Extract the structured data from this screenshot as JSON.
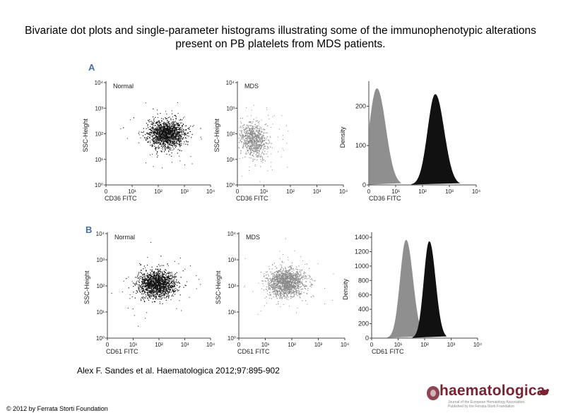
{
  "title": "Bivariate dot plots and single-parameter histograms illustrating some of the immunophenotypic alterations present on PB platelets from MDS patients.",
  "citation": "Alex F. Sandes et al. Haematologica 2012;97:895-902",
  "copyright": "© 2012 by Ferrata Storti Foundation",
  "logo": {
    "name": "haematologica",
    "subtitle": "Journal of the European Hematology Association. Published by the Ferrata Storti Foundation"
  },
  "colors": {
    "normal_dots": "#111111",
    "mds_dots": "#8a8a8a",
    "normal_hist": "#111111",
    "mds_hist": "#8f8f8f",
    "panel_label": "#4a6fa5",
    "logo": "#7a2333"
  },
  "panels": [
    {
      "label": "A",
      "dot_plots": [
        {
          "legend": "Normal",
          "xlabel": "CD36 FITC",
          "ylabel": "SSC-Height",
          "xticks": [
            "0",
            "10¹",
            "10²",
            "10³",
            "10⁴"
          ],
          "yticks": [
            "10⁴",
            "10³",
            "10²",
            "10¹",
            "10⁰"
          ]
        },
        {
          "legend": "MDS",
          "xlabel": "CD36 FITC",
          "ylabel": "SSC-Height",
          "xticks": [
            "0",
            "10¹",
            "10²",
            "10³",
            "10⁴"
          ],
          "yticks": [
            "10⁴",
            "10³",
            "10²",
            "10¹",
            "10⁰"
          ]
        }
      ],
      "histogram": {
        "xlabel": "CD36 FITC",
        "ylabel": "Density",
        "xticks": [
          "0",
          "10¹",
          "10²",
          "10³",
          "10⁴"
        ],
        "yticks": [
          "200",
          "100",
          "0"
        ]
      }
    },
    {
      "label": "B",
      "dot_plots": [
        {
          "legend": "Normal",
          "xlabel": "CD61 FITC",
          "ylabel": "SSC-Height",
          "xticks": [
            "0",
            "10¹",
            "10²",
            "10³",
            "10⁴"
          ],
          "yticks": [
            "10⁴",
            "10³",
            "10²",
            "10¹",
            "10⁰"
          ]
        },
        {
          "legend": "MDS",
          "xlabel": "CD61 FITC",
          "ylabel": "SSC-Height",
          "xticks": [
            "0",
            "10¹",
            "10²",
            "10³",
            "10⁴"
          ],
          "yticks": [
            "10⁴",
            "10³",
            "10²",
            "10¹",
            "10⁰"
          ]
        }
      ],
      "histogram": {
        "xlabel": "CD61 FITC",
        "ylabel": "Density",
        "xticks": [
          "0",
          "10¹",
          "10²",
          "10³",
          "10⁴"
        ],
        "yticks": [
          "1400",
          "1200",
          "1000",
          "800",
          "600",
          "400",
          "200",
          "0"
        ]
      }
    }
  ],
  "chart_data": [
    {
      "type": "scatter",
      "panel": "A",
      "legend": "Normal",
      "xlabel": "CD36 FITC",
      "ylabel": "SSC-Height",
      "xscale": "log",
      "yscale": "log",
      "xlim": [
        1,
        10000
      ],
      "ylim": [
        1,
        10000
      ],
      "cluster_center": [
        200,
        100
      ],
      "density": "dense"
    },
    {
      "type": "scatter",
      "panel": "A",
      "legend": "MDS",
      "xlabel": "CD36 FITC",
      "ylabel": "SSC-Height",
      "xscale": "log",
      "yscale": "log",
      "xlim": [
        1,
        10000
      ],
      "ylim": [
        1,
        10000
      ],
      "cluster_center": [
        4,
        60
      ],
      "density": "sparse"
    },
    {
      "type": "area",
      "panel": "A",
      "xlabel": "CD36 FITC",
      "ylabel": "Density",
      "xscale": "log",
      "xlim": [
        1,
        10000
      ],
      "ylim": [
        0,
        260
      ],
      "series": [
        {
          "peak_x": 2,
          "peak_y": 245
        },
        {
          "peak_x": 300,
          "peak_y": 230
        }
      ]
    },
    {
      "type": "scatter",
      "panel": "B",
      "legend": "Normal",
      "xlabel": "CD61 FITC",
      "ylabel": "SSC-Height",
      "xscale": "log",
      "yscale": "log",
      "xlim": [
        1,
        10000
      ],
      "ylim": [
        1,
        10000
      ],
      "cluster_center": [
        80,
        120
      ],
      "density": "dense"
    },
    {
      "type": "scatter",
      "panel": "B",
      "legend": "MDS",
      "xlabel": "CD61 FITC",
      "ylabel": "SSC-Height",
      "xscale": "log",
      "yscale": "log",
      "xlim": [
        1,
        10000
      ],
      "ylim": [
        1,
        10000
      ],
      "cluster_center": [
        60,
        140
      ],
      "density": "dense"
    },
    {
      "type": "area",
      "panel": "B",
      "xlabel": "CD61 FITC",
      "ylabel": "Density",
      "xscale": "log",
      "xlim": [
        1,
        10000
      ],
      "ylim": [
        0,
        1450
      ],
      "series": [
        {
          "peak_x": 20,
          "peak_y": 1360
        },
        {
          "peak_x": 150,
          "peak_y": 1340
        }
      ]
    }
  ]
}
